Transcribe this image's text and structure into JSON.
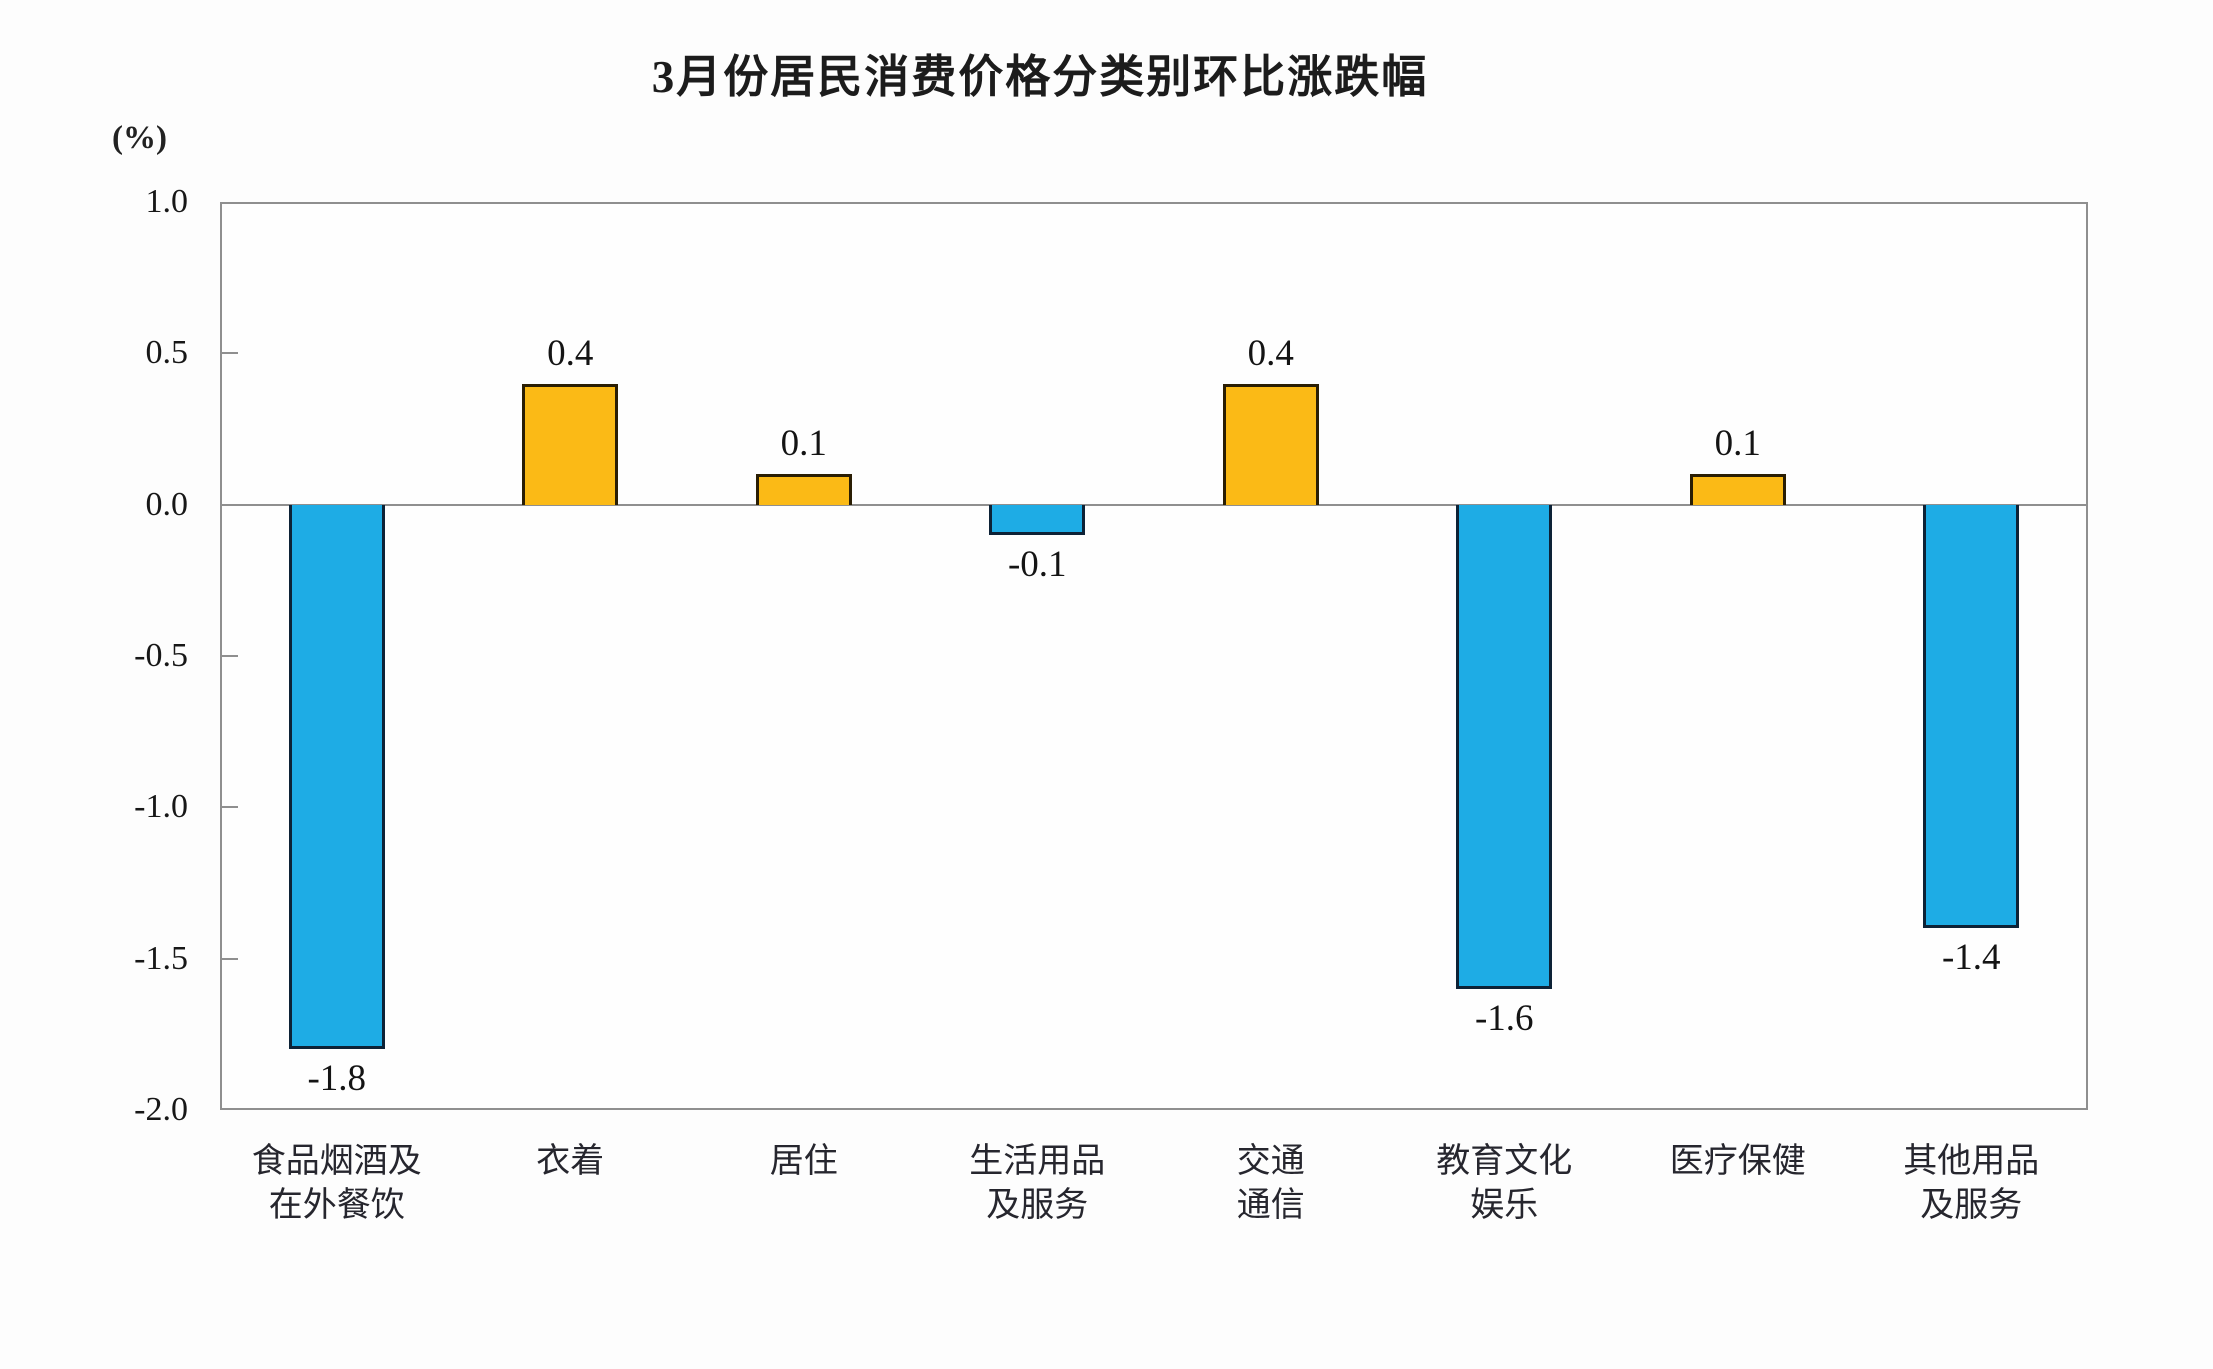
{
  "chart_data": {
    "type": "bar",
    "title": "3月份居民消费价格分类别环比涨跌幅",
    "unit_label": "(%)",
    "categories": [
      "食品烟酒及\n在外餐饮",
      "衣着",
      "居住",
      "生活用品\n及服务",
      "交通\n通信",
      "教育文化\n娱乐",
      "医疗保健",
      "其他用品\n及服务"
    ],
    "values": [
      -1.8,
      0.4,
      0.1,
      -0.1,
      0.4,
      -1.6,
      0.1,
      -1.4
    ],
    "value_labels": [
      "-1.8",
      "0.4",
      "0.1",
      "-0.1",
      "0.4",
      "-1.6",
      "0.1",
      "-1.4"
    ],
    "xlabel": "",
    "ylabel": "(%)",
    "ylim": [
      -2.0,
      1.0
    ],
    "ytick_labels": [
      "1.0",
      "0.5",
      "0.0",
      "-0.5",
      "-1.0",
      "-1.5",
      "-2.0"
    ],
    "ytick_values": [
      1.0,
      0.5,
      0.0,
      -0.5,
      -1.0,
      -1.5,
      -2.0
    ],
    "grid": "off",
    "legend": "none",
    "colors": {
      "positive_fill": "#FBBA16",
      "positive_border": "#2a1e04",
      "negative_fill": "#1EACE5",
      "negative_border": "#0d2236",
      "axis": "#8f8f8f",
      "text": "#1a1a1a"
    }
  }
}
